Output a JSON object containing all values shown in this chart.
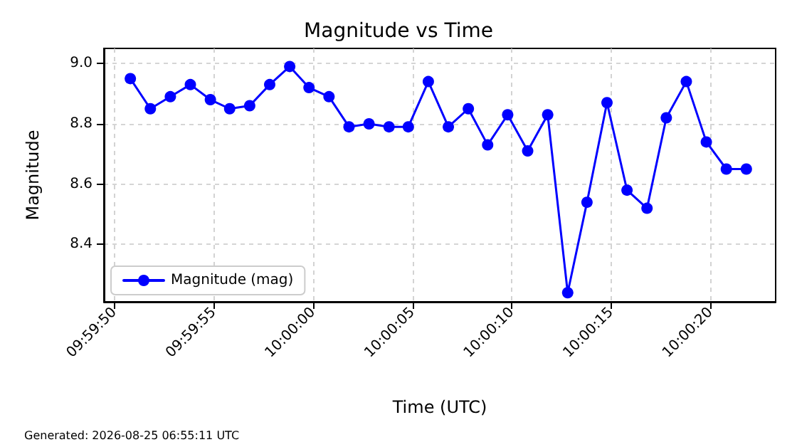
{
  "chart_data": {
    "type": "line",
    "title": "Magnitude vs Time",
    "xlabel": "Time (UTC)",
    "ylabel": "Magnitude",
    "x": [
      9.99744,
      9.99772,
      9.998,
      9.99828,
      9.99856,
      9.99883,
      9.99911,
      9.99939,
      9.99967,
      9.99994,
      10.00022,
      10.0005,
      10.00078,
      10.00106,
      10.00133,
      10.00161,
      10.00189,
      10.00217,
      10.00244,
      10.00272,
      10.003,
      10.00328,
      10.00356,
      10.00383,
      10.00411,
      10.00439,
      10.00467,
      10.00494,
      10.00522,
      10.0055,
      10.00578,
      10.00606
    ],
    "series": [
      {
        "name": "Magnitude (mag)",
        "color": "#0000ff",
        "values": [
          8.95,
          8.85,
          8.89,
          8.93,
          8.88,
          8.85,
          8.86,
          8.93,
          8.99,
          8.92,
          8.89,
          8.79,
          8.8,
          8.79,
          8.79,
          8.94,
          8.79,
          8.85,
          8.73,
          8.83,
          8.71,
          8.83,
          8.24,
          8.54,
          8.87,
          8.58,
          8.52,
          8.82,
          8.94,
          8.74,
          8.65,
          8.65
        ]
      }
    ],
    "xlim": [
      9.99707,
      10.00647
    ],
    "ylim": [
      8.21,
      9.05
    ],
    "xticks": [
      {
        "value": 9.99722,
        "label": "09:59:50"
      },
      {
        "value": 9.99861,
        "label": "09:59:55"
      },
      {
        "value": 10.0,
        "label": "10:00:00"
      },
      {
        "value": 10.00139,
        "label": "10:00:05"
      },
      {
        "value": 10.00278,
        "label": "10:00:10"
      },
      {
        "value": 10.00417,
        "label": "10:00:15"
      },
      {
        "value": 10.00556,
        "label": "10:00:20"
      }
    ],
    "yticks": [
      8.4,
      8.6,
      8.8,
      {
        "value": 9,
        "label": "9.0"
      }
    ],
    "grid": true,
    "legend": "bottom left",
    "marker": "circle",
    "line_style": "solid",
    "annotations": [
      "Generated: 2026-08-25 06:55:11 UTC"
    ]
  }
}
